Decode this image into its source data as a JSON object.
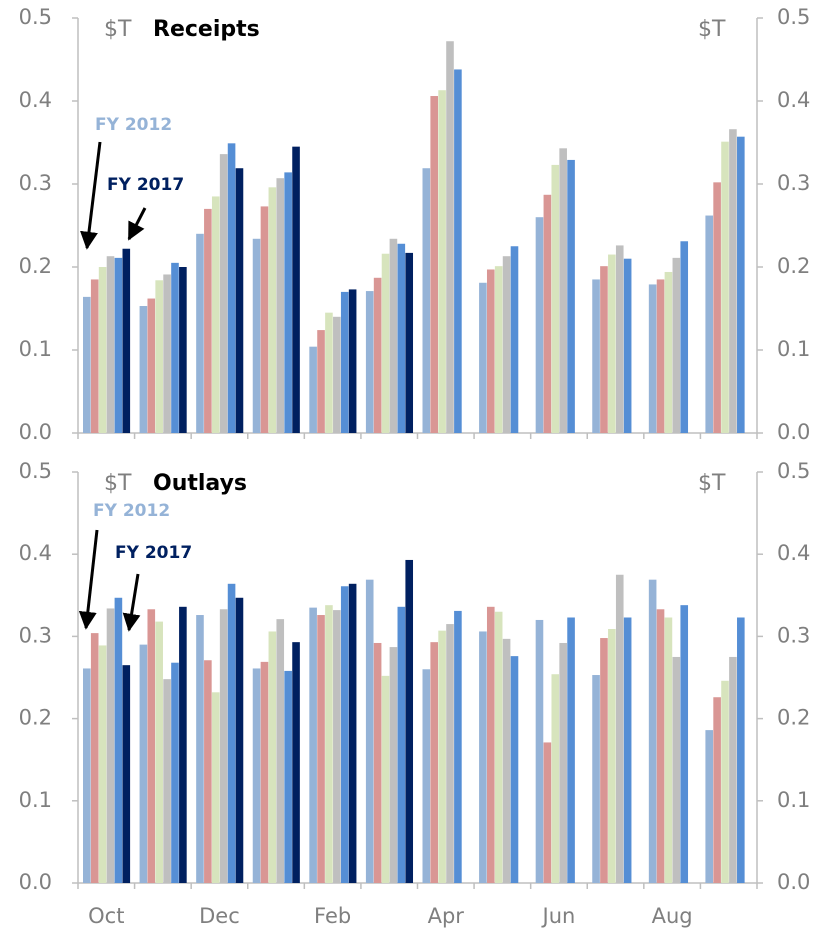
{
  "chart_data": [
    {
      "type": "bar",
      "title": "Receipts",
      "y_label": "$T",
      "y2_label": "$T",
      "annotations": [
        {
          "text": "FY 2012",
          "color": "#95b3d7"
        },
        {
          "text": "FY 2017",
          "color": "#002060"
        }
      ],
      "ylim": [
        0,
        0.5
      ],
      "yticks": [
        {
          "value": 0,
          "label": "0.0"
        },
        0.1,
        0.2,
        0.3,
        0.4,
        0.5
      ],
      "y2lim": [
        0,
        0.5
      ],
      "y2ticks": [
        {
          "value": 0,
          "label": "0.0"
        },
        0.1,
        0.2,
        0.3,
        0.4,
        0.5
      ],
      "series": [
        {
          "color": "#95b3d7",
          "values": [
            0.164,
            0.153,
            0.24,
            0.234,
            0.104,
            0.171,
            0.319,
            0.181,
            0.26,
            0.185,
            0.179,
            0.262
          ]
        },
        {
          "color": "#d99694",
          "values": [
            0.185,
            0.162,
            0.27,
            0.273,
            0.124,
            0.187,
            0.406,
            0.197,
            0.287,
            0.201,
            0.185,
            0.302
          ]
        },
        {
          "color": "#d7e4bd",
          "values": [
            0.2,
            0.184,
            0.285,
            0.296,
            0.145,
            0.216,
            0.413,
            0.201,
            0.323,
            0.215,
            0.194,
            0.351
          ]
        },
        {
          "color": "#bfbfbf",
          "values": [
            0.213,
            0.191,
            0.336,
            0.307,
            0.14,
            0.234,
            0.472,
            0.213,
            0.343,
            0.226,
            0.211,
            0.366
          ]
        },
        {
          "color": "#558ed5",
          "values": [
            0.211,
            0.205,
            0.349,
            0.314,
            0.17,
            0.228,
            0.438,
            0.225,
            0.329,
            0.21,
            0.231,
            0.357
          ]
        },
        {
          "color": "#002060",
          "values": [
            0.222,
            0.2,
            0.319,
            0.345,
            0.173,
            0.217,
            null,
            null,
            null,
            null,
            null,
            null
          ]
        }
      ]
    },
    {
      "type": "bar",
      "title": "Outlays",
      "y_label": "$T",
      "y2_label": "$T",
      "annotations": [
        {
          "text": "FY 2012",
          "color": "#95b3d7"
        },
        {
          "text": "FY 2017",
          "color": "#002060"
        }
      ],
      "categories": [
        "Oct",
        null,
        "Dec",
        null,
        "Feb",
        null,
        "Apr",
        null,
        "Jun",
        null,
        "Aug",
        null
      ],
      "ylim": [
        0,
        0.5
      ],
      "yticks": [
        {
          "value": 0,
          "label": "0.0"
        },
        0.1,
        0.2,
        0.3,
        0.4,
        0.5
      ],
      "y2lim": [
        0,
        0.5
      ],
      "y2ticks": [
        {
          "value": 0,
          "label": "0.0"
        },
        0.1,
        0.2,
        0.3,
        0.4,
        0.5
      ],
      "series": [
        {
          "color": "#95b3d7",
          "values": [
            0.261,
            0.29,
            0.326,
            0.261,
            0.335,
            0.369,
            0.26,
            0.306,
            0.32,
            0.253,
            0.369,
            0.186
          ]
        },
        {
          "color": "#d99694",
          "values": [
            0.304,
            0.333,
            0.271,
            0.269,
            0.326,
            0.292,
            0.293,
            0.336,
            0.171,
            0.298,
            0.333,
            0.226
          ]
        },
        {
          "color": "#d7e4bd",
          "values": [
            0.289,
            0.318,
            0.232,
            0.306,
            0.338,
            0.252,
            0.307,
            0.33,
            0.254,
            0.309,
            0.323,
            0.246
          ]
        },
        {
          "color": "#bfbfbf",
          "values": [
            0.334,
            0.248,
            0.333,
            0.321,
            0.332,
            0.287,
            0.315,
            0.297,
            0.292,
            0.375,
            0.275,
            0.275
          ]
        },
        {
          "color": "#558ed5",
          "values": [
            0.347,
            0.268,
            0.364,
            0.258,
            0.361,
            0.336,
            0.331,
            0.276,
            0.323,
            0.323,
            0.338,
            0.323
          ]
        },
        {
          "color": "#002060",
          "values": [
            0.265,
            0.336,
            0.347,
            0.293,
            0.364,
            0.393,
            null,
            null,
            null,
            null,
            null,
            null
          ]
        }
      ]
    }
  ]
}
